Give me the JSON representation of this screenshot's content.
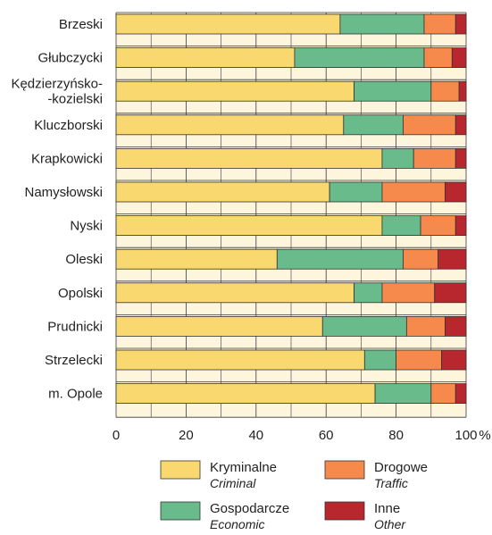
{
  "chart_data": {
    "type": "bar",
    "orientation": "horizontal",
    "stacked": true,
    "categories": [
      [
        "Brzeski"
      ],
      [
        "Głubczycki"
      ],
      [
        "Kędzierzyńsko-",
        "-kozielski"
      ],
      [
        "Kluczborski"
      ],
      [
        "Krapkowicki"
      ],
      [
        "Namysłowski"
      ],
      [
        "Nyski"
      ],
      [
        "Oleski"
      ],
      [
        "Opolski"
      ],
      [
        "Prudnicki"
      ],
      [
        "Strzelecki"
      ],
      [
        "m. Opole"
      ]
    ],
    "series": [
      {
        "name": "Kryminalne",
        "name_en": "Criminal",
        "color": "#f9d86f",
        "values": [
          64,
          51,
          68,
          65,
          76,
          61,
          76,
          46,
          68,
          59,
          71,
          74
        ]
      },
      {
        "name": "Gospodarcze",
        "name_en": "Economic",
        "color": "#6abb8b",
        "values": [
          24,
          37,
          22,
          17,
          9,
          15,
          11,
          36,
          8,
          24,
          9,
          16
        ]
      },
      {
        "name": "Drogowe",
        "name_en": "Traffic",
        "color": "#f58a4c",
        "values": [
          9,
          8,
          8,
          15,
          12,
          18,
          10,
          10,
          15,
          11,
          13,
          7
        ]
      },
      {
        "name": "Inne",
        "name_en": "Other",
        "color": "#b8262e",
        "values": [
          3,
          4,
          2,
          3,
          3,
          6,
          3,
          8,
          9,
          6,
          7,
          3
        ]
      }
    ],
    "xlim": [
      0,
      100
    ],
    "xticks": [
      0,
      20,
      40,
      60,
      80,
      100
    ],
    "xunit": "%",
    "background_band_color": "#fdf5dc",
    "grid": true,
    "legend_position": "bottom"
  }
}
